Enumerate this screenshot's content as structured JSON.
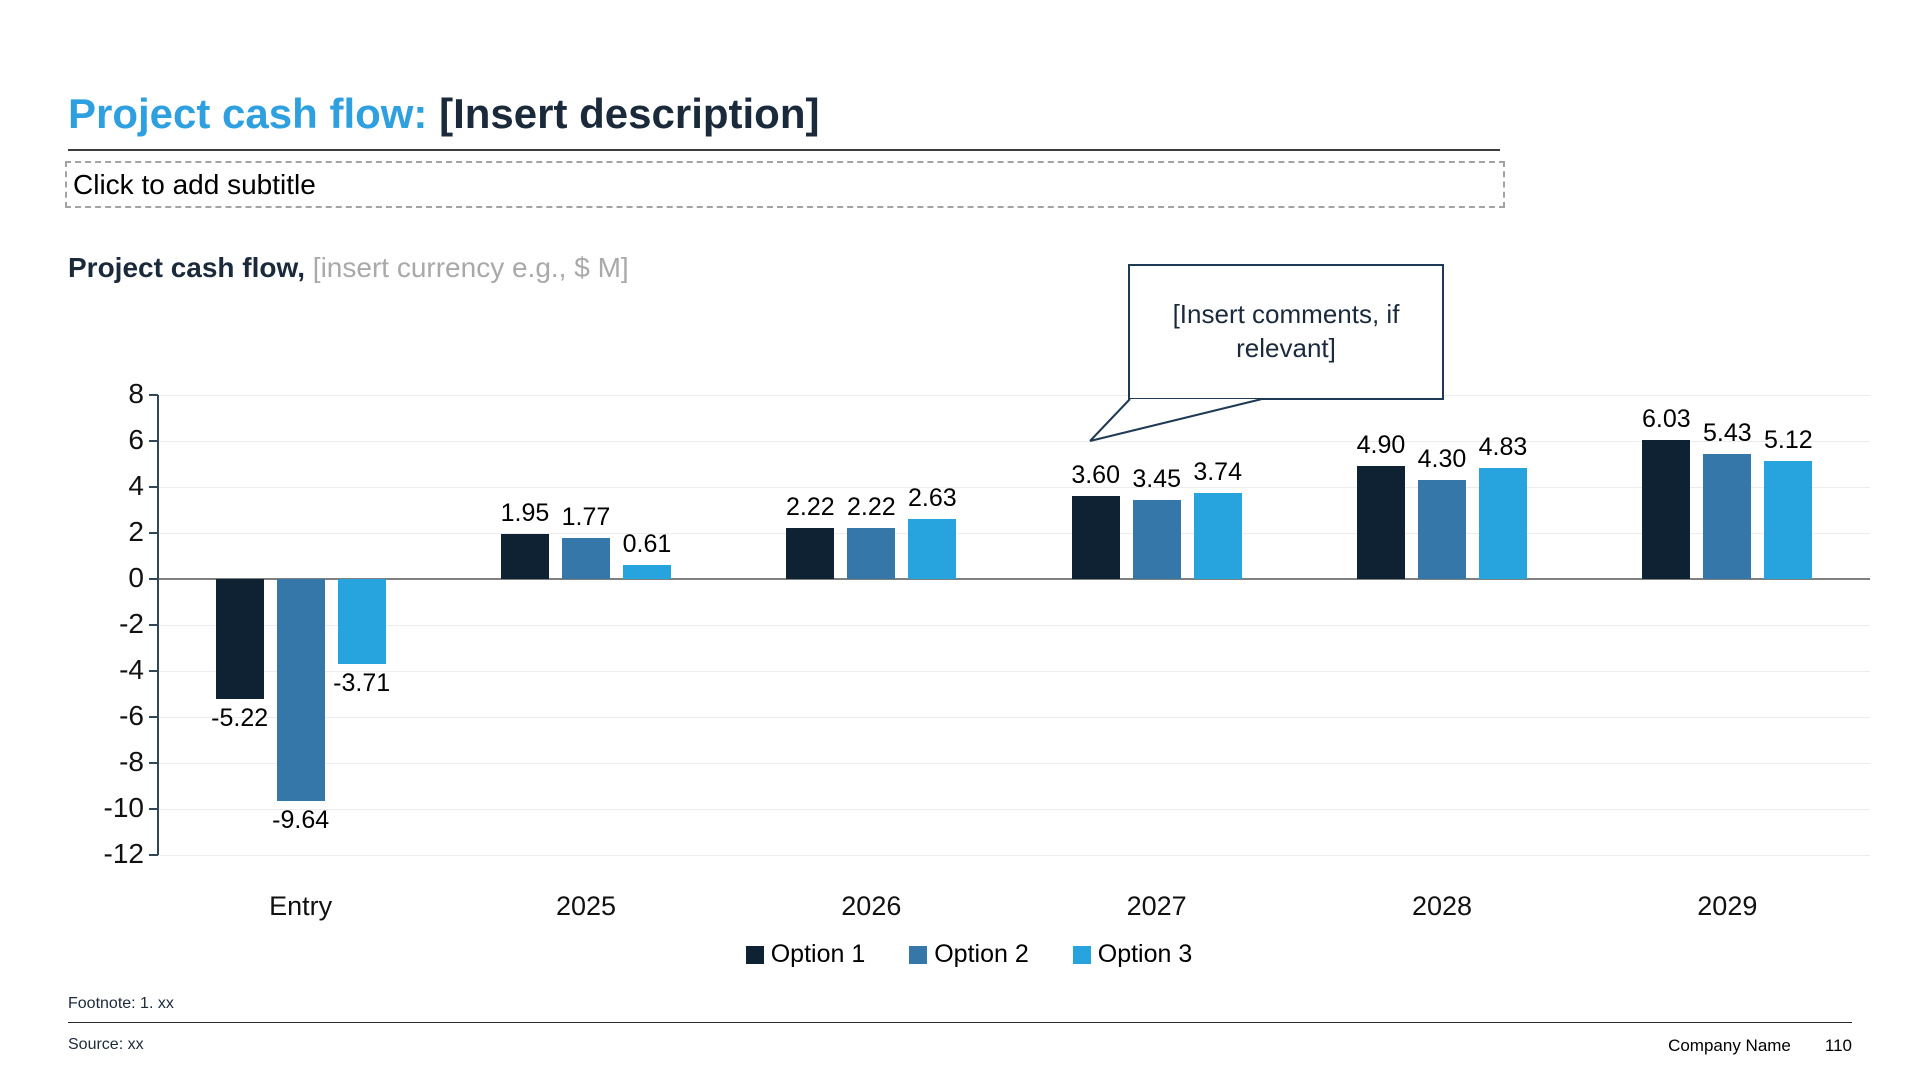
{
  "slide": {
    "title": {
      "highlight": "Project cash flow:",
      "rest": " [Insert description]"
    },
    "subtitle_placeholder": "Click to add subtitle",
    "chart_heading": {
      "bold": "Project cash flow,",
      "muted": " [insert currency e.g., $ M]"
    },
    "callout_text": "[Insert comments, if relevant]",
    "footnote": "Footnote: 1. xx",
    "source": "Source: xx",
    "company": "Company Name",
    "page_number": "110"
  },
  "colors": {
    "title_accent": "#2E9FDF",
    "dark_text": "#1B2A3B",
    "muted_text": "#A9A9A9",
    "gridline": "#ECECEC",
    "zero_line": "#808080",
    "axis": "#32465A",
    "callout_border": "#1F3A54"
  },
  "chart_data": {
    "type": "bar",
    "title": "Project cash flow, [insert currency e.g., $ M]",
    "categories": [
      "Entry",
      "2025",
      "2026",
      "2027",
      "2028",
      "2029"
    ],
    "series": [
      {
        "name": "Option 1",
        "color": "#0E2233",
        "values": [
          -5.22,
          1.95,
          2.22,
          3.6,
          4.9,
          6.03
        ]
      },
      {
        "name": "Option 2",
        "color": "#3577A9",
        "values": [
          -9.64,
          1.77,
          2.22,
          3.45,
          4.3,
          5.43
        ]
      },
      {
        "name": "Option 3",
        "color": "#27A4DE",
        "values": [
          -3.71,
          0.61,
          2.63,
          3.74,
          4.83,
          5.12
        ]
      }
    ],
    "xlabel": "",
    "ylabel": "",
    "ylim": [
      -12,
      8
    ],
    "ytick_step": 2,
    "grid": true,
    "legend_position": "bottom",
    "value_labels_decimals": 2
  }
}
